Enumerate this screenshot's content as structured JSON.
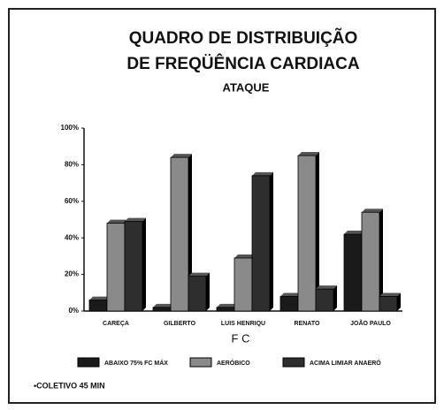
{
  "chart_data": {
    "type": "bar",
    "title": [
      "QUADRO DE DISTRIBUIÇÃO",
      "DE FREQÜÊNCIA CARDIACA"
    ],
    "subtitle": "ATAQUE",
    "x_label": "F C",
    "note": "•COLETIVO 45 MIN",
    "categories": [
      "CAREÇA",
      "GILBERTO",
      "LUIS HENRIQU",
      "RENATO",
      "JOÃO PAULO"
    ],
    "series": [
      {
        "name": "ABAIXO 75% FC MÁX",
        "color": "#1a1a1a",
        "values": [
          6,
          2,
          2,
          8,
          42
        ]
      },
      {
        "name": "AERÓBICO",
        "color": "#8a8a8a",
        "values": [
          48,
          84,
          29,
          85,
          54
        ]
      },
      {
        "name": "ACIMA LIMIAR ANAERÓ",
        "color": "#2e2e2e",
        "values": [
          49,
          19,
          74,
          12,
          8
        ]
      }
    ],
    "ylim": [
      0,
      100
    ],
    "yticks": [
      {
        "value": 0,
        "label": "0%"
      },
      {
        "value": 20,
        "label": "20%"
      },
      {
        "value": 40,
        "label": "40%"
      },
      {
        "value": 60,
        "label": "60%"
      },
      {
        "value": 80,
        "label": "80%"
      },
      {
        "value": 100,
        "label": "100%"
      }
    ],
    "grid": false
  }
}
